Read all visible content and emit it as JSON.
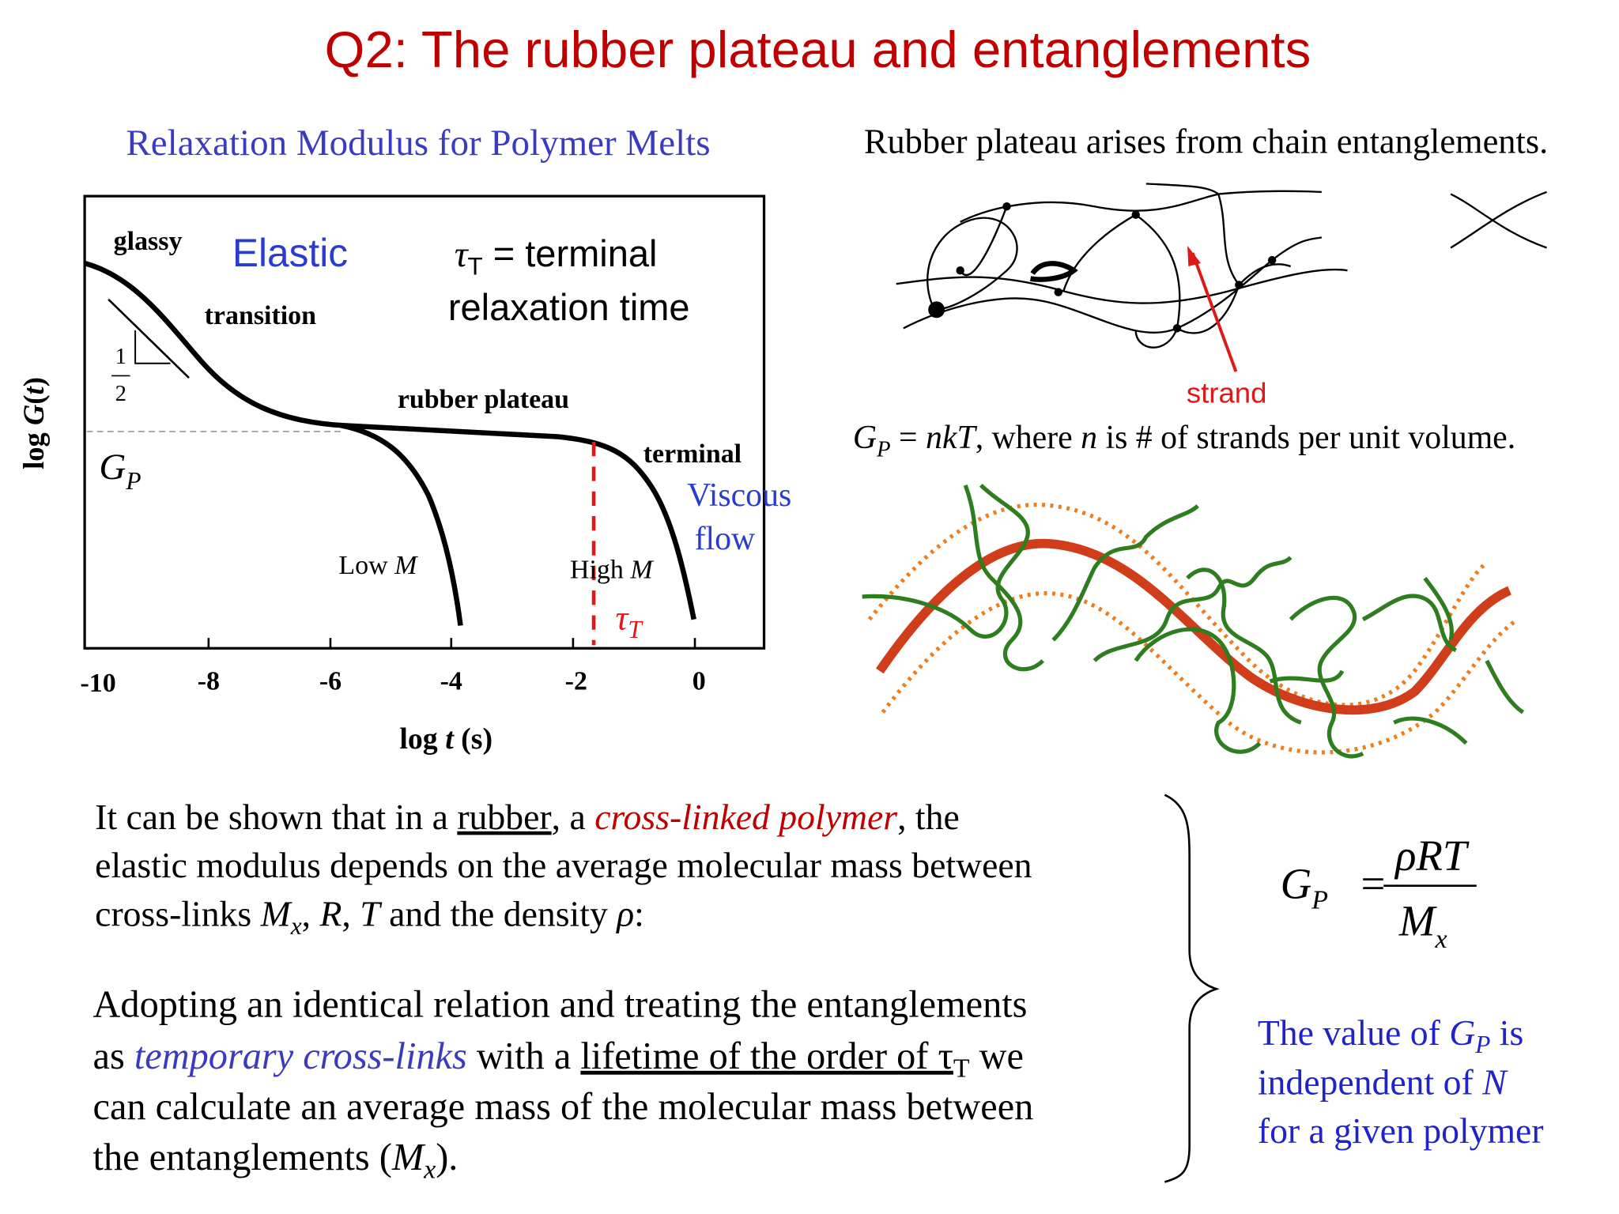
{
  "title": "Q2: The rubber plateau and entanglements",
  "figure": {
    "title": "Relaxation Modulus for Polymer Melts",
    "y_label": [
      "log ",
      "G",
      "(",
      "t",
      ")"
    ],
    "x_label": [
      "log ",
      "t",
      " (s)"
    ],
    "x_ticks": [
      "-10",
      "-8",
      "-6",
      "-4",
      "-2",
      "0"
    ],
    "glassy": "glassy",
    "elastic": "Elastic",
    "tau_note": [
      "τ",
      "T",
      " = terminal",
      "relaxation time"
    ],
    "transition": "transition",
    "slope": [
      "1",
      "2"
    ],
    "rubber_plateau": "rubber plateau",
    "gp": [
      "G",
      "P"
    ],
    "terminal": "terminal",
    "viscous_flow": [
      "Viscous",
      "flow"
    ],
    "low_m": [
      "Low ",
      "M"
    ],
    "high_m": [
      "High ",
      "M"
    ],
    "tau_t": [
      "τ",
      "T"
    ]
  },
  "network": {
    "heading": "Rubber plateau arises from chain entanglements.",
    "strand": "strand",
    "equation": [
      "G",
      "P",
      " = ",
      "nkT",
      ", where ",
      "n",
      " is # of strands per unit volume."
    ]
  },
  "paragraph_1": {
    "line_1": [
      "It can be shown that in a ",
      "rubber",
      ", a ",
      "cross-linked polymer",
      ", the"
    ],
    "line_2": "elastic modulus depends on the average molecular mass between",
    "line_3": [
      "cross-links ",
      "M",
      "x",
      ", ",
      "R",
      ", ",
      "T",
      " and the density ",
      "ρ",
      ":"
    ]
  },
  "paragraph_2": {
    "line_1": "Adopting an identical relation and treating the entanglements",
    "line_2": [
      "as ",
      "temporary cross-links",
      " with a ",
      "lifetime of the order of τ",
      "T",
      " we"
    ],
    "line_3": "can calculate an average mass of the molecular mass between",
    "line_4": [
      "the entanglements (",
      "M",
      "x",
      ")."
    ]
  },
  "formula": [
    "G",
    "P",
    "=",
    "ρRT",
    "M",
    "x"
  ],
  "note": {
    "line_1": [
      "The value of ",
      "G",
      "P",
      " is"
    ],
    "line_2": [
      "independent of ",
      "N"
    ],
    "line_3": "for a given polymer"
  }
}
